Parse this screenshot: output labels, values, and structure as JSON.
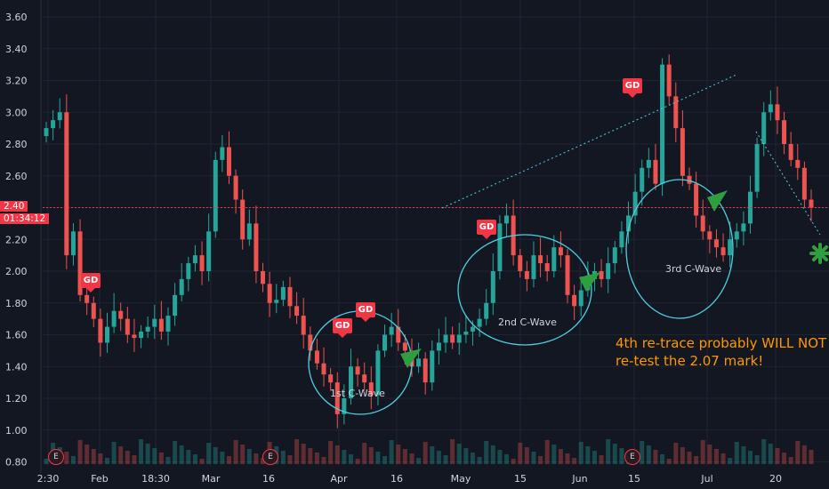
{
  "chart_data": {
    "type": "candlestick",
    "y_ticks": [
      "3.60",
      "3.40",
      "3.20",
      "3.00",
      "2.80",
      "2.60",
      "2.40",
      "2.20",
      "2.00",
      "1.80",
      "1.60",
      "1.40",
      "1.20",
      "1.00",
      "0.80"
    ],
    "ylim": [
      0.78,
      3.68
    ],
    "x_ticks": [
      "2:30",
      "Feb",
      "18:30",
      "Mar",
      "16",
      "Apr",
      "16",
      "May",
      "15",
      "Jun",
      "15",
      "Jul",
      "20"
    ],
    "current_price": {
      "price": "2.40",
      "countdown": "01:34:12"
    },
    "closes": [
      2.9,
      2.95,
      3.0,
      2.1,
      2.25,
      1.85,
      1.8,
      1.7,
      1.55,
      1.65,
      1.75,
      1.7,
      1.6,
      1.58,
      1.62,
      1.65,
      1.7,
      1.62,
      1.72,
      1.85,
      1.95,
      2.05,
      2.1,
      2.0,
      2.25,
      2.7,
      2.78,
      2.6,
      2.45,
      2.2,
      2.3,
      2.0,
      1.92,
      1.8,
      1.82,
      1.9,
      1.78,
      1.72,
      1.6,
      1.5,
      1.42,
      1.35,
      1.3,
      1.1,
      1.2,
      1.4,
      1.35,
      1.3,
      1.22,
      1.5,
      1.6,
      1.65,
      1.55,
      1.5,
      1.4,
      1.45,
      1.3,
      1.5,
      1.55,
      1.6,
      1.55,
      1.6,
      1.62,
      1.65,
      1.7,
      1.8,
      2.0,
      2.3,
      2.35,
      2.1,
      2.0,
      1.95,
      2.1,
      2.05,
      2.0,
      2.15,
      2.1,
      1.85,
      1.78,
      1.88,
      1.95,
      2.0,
      1.95,
      2.05,
      2.15,
      2.25,
      2.35,
      2.5,
      2.65,
      2.7,
      2.55,
      3.3,
      3.1,
      2.9,
      2.6,
      2.55,
      2.35,
      2.25,
      2.2,
      2.15,
      2.1,
      2.2,
      2.25,
      2.3,
      2.5,
      2.8,
      3.0,
      3.05,
      2.95,
      2.8,
      2.7,
      2.65,
      2.45,
      2.4
    ],
    "gd_labels": [
      "GD",
      "GD",
      "GD",
      "GD",
      "GD"
    ],
    "earnings_label": "E",
    "wave_labels": [
      "1st C-Wave",
      "2nd C-Wave",
      "3rd C-Wave"
    ],
    "note_lines": [
      "4th re-trace probably WILL NOT",
      "re-test the 2.07 mark!"
    ],
    "colors": {
      "up": "#26a69a",
      "down": "#ef5350",
      "annotation": "#4dd0e1",
      "arrow": "#2e9e3e",
      "note": "#ff9800",
      "price_line": "#f23645"
    }
  }
}
